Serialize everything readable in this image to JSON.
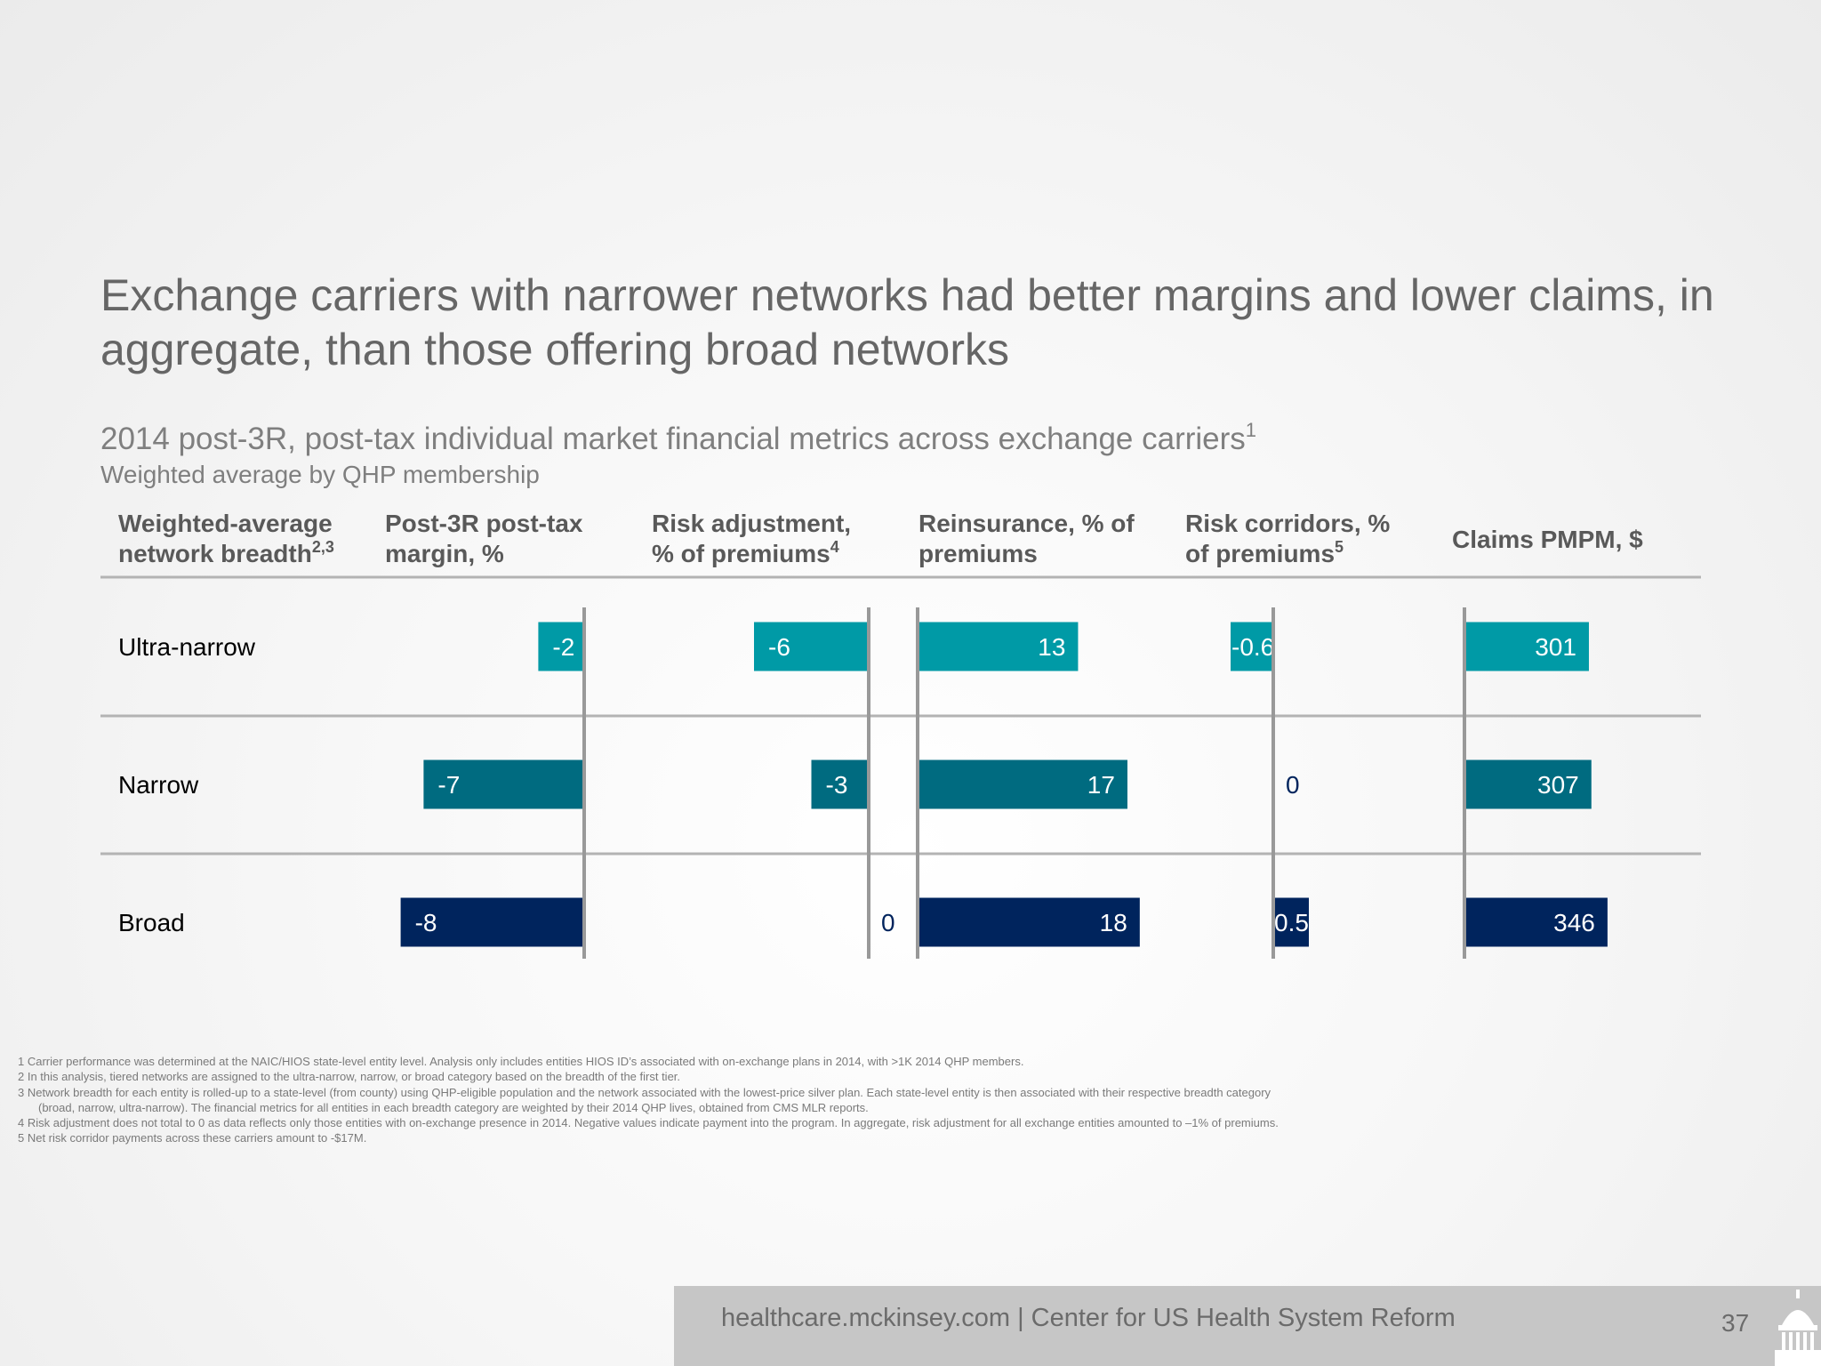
{
  "title": "Exchange carriers with narrower networks had better margins and lower claims, in aggregate, than those offering broad networks",
  "subtitle": {
    "text": "2014 post-3R, post-tax individual market financial metrics across exchange carriers",
    "sup": "1"
  },
  "subnote": "Weighted average by QHP membership",
  "columns": [
    {
      "line1": "Weighted-average",
      "line2": "network breadth",
      "sup": "2,3"
    },
    {
      "line1": "Post-3R post-tax",
      "line2": "margin, %",
      "sup": ""
    },
    {
      "line1": "Risk adjustment,",
      "line2": "% of premiums",
      "sup": "4"
    },
    {
      "line1": "Reinsurance, % of",
      "line2": "premiums",
      "sup": ""
    },
    {
      "line1": "Risk corridors, %",
      "line2": "of premiums",
      "sup": "5"
    },
    {
      "line1": "Claims PMPM, $",
      "line2": "",
      "sup": ""
    }
  ],
  "rows": [
    "Ultra-narrow",
    "Narrow",
    "Broad"
  ],
  "colors": {
    "Ultra-narrow": "#009aa6",
    "Narrow": "#006b80",
    "Broad": "#00245d",
    "axis": "#999999",
    "divider": "#b3b3b3"
  },
  "chart_data": {
    "type": "bar",
    "orientation": "horizontal",
    "categories": [
      "Ultra-narrow",
      "Narrow",
      "Broad"
    ],
    "metrics": [
      {
        "name": "Post-3R post-tax margin, %",
        "values": [
          -2,
          -7,
          -8
        ],
        "labels": [
          "-2",
          "-7",
          "-8"
        ]
      },
      {
        "name": "Risk adjustment, % of premiums",
        "values": [
          -6,
          -3,
          0
        ],
        "labels": [
          "-6",
          "-3",
          "0"
        ]
      },
      {
        "name": "Reinsurance, % of premiums",
        "values": [
          13,
          17,
          18
        ],
        "labels": [
          "13",
          "17",
          "18"
        ]
      },
      {
        "name": "Risk corridors, % of premiums",
        "values": [
          -0.6,
          0,
          0.5
        ],
        "labels": [
          "-0.6",
          "0",
          "0.5"
        ]
      },
      {
        "name": "Claims PMPM, $",
        "values": [
          301,
          307,
          346
        ],
        "labels": [
          "301",
          "307",
          "346"
        ]
      }
    ]
  },
  "footnotes": [
    "1 Carrier performance was determined at the NAIC/HIOS state-level entity level. Analysis only includes entities HIOS ID’s associated with on-exchange plans in 2014, with >1K 2014 QHP members.",
    "2 In this analysis, tiered networks are assigned to the ultra-narrow, narrow, or broad category based on the breadth of the first tier.",
    "3 Network breadth for each entity is rolled-up to a state-level (from county) using QHP-eligible population and the network associated with the lowest-price silver plan. Each state-level entity is then associated with their respective breadth category",
    "(broad, narrow, ultra-narrow). The financial metrics for all entities in each breadth category are weighted by their 2014 QHP lives, obtained from CMS MLR reports.",
    "4 Risk adjustment does not total to 0 as data reflects only those entities with on-exchange presence in 2014. Negative values indicate payment into the program. In aggregate, risk adjustment for all exchange entities amounted to –1% of premiums.",
    "5 Net risk corridor payments across these carriers amount to -$17M."
  ],
  "footer": {
    "text": "healthcare.mckinsey.com | Center for US Health System Reform",
    "page_number": "37"
  }
}
